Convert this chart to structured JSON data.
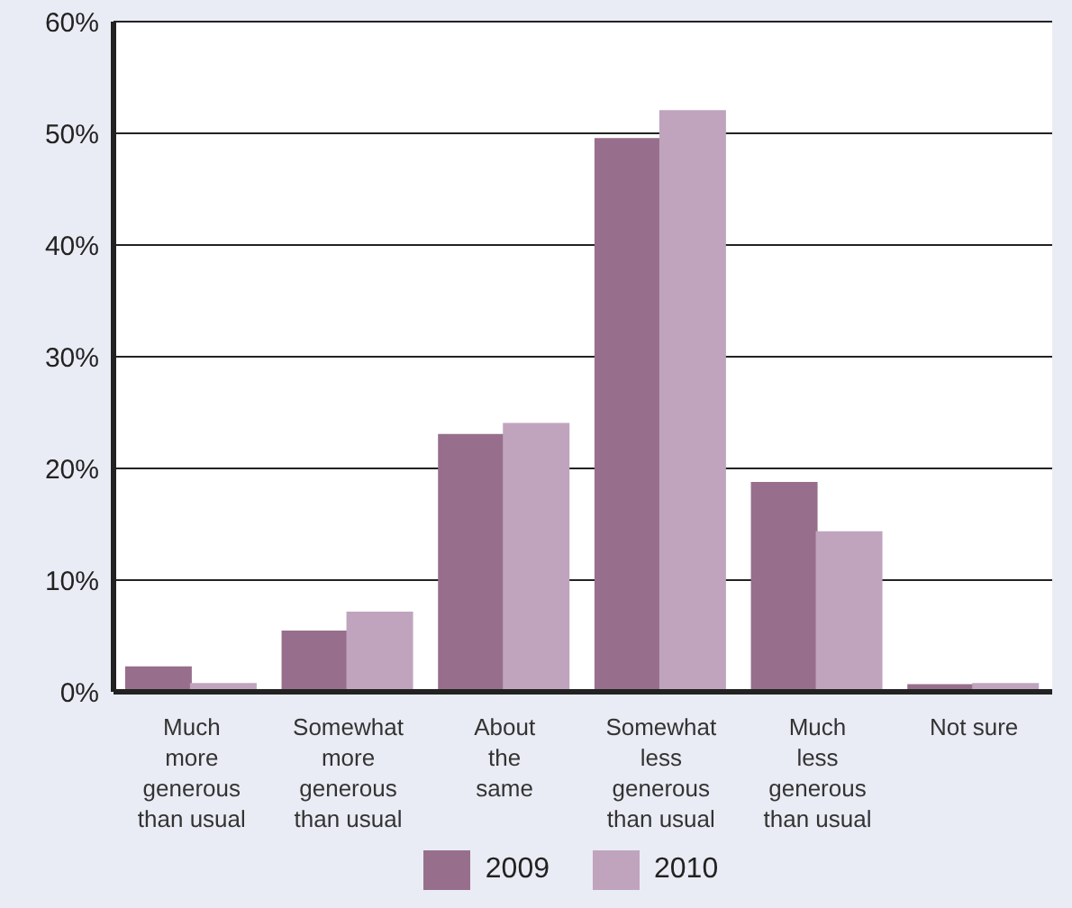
{
  "chart_data": {
    "type": "bar",
    "categories": [
      "Much\nmore\ngenerous\nthan usual",
      "Somewhat\nmore\ngenerous\nthan usual",
      "About\nthe\nsame",
      "Somewhat\nless\ngenerous\nthan usual",
      "Much\nless\ngenerous\nthan usual",
      "Not sure"
    ],
    "series": [
      {
        "name": "2009",
        "color": "#976f8c",
        "values": [
          2.2,
          5.4,
          23.0,
          49.5,
          18.7,
          0.6
        ]
      },
      {
        "name": "2010",
        "color": "#c0a4be",
        "values": [
          0.7,
          7.1,
          24.0,
          52.0,
          14.3,
          0.7
        ]
      }
    ],
    "ylim": [
      0,
      60
    ],
    "yticks": [
      {
        "value": 0,
        "label": "0%"
      },
      {
        "value": 10,
        "label": "10%"
      },
      {
        "value": 20,
        "label": "20%"
      },
      {
        "value": 30,
        "label": "30%"
      },
      {
        "value": 40,
        "label": "40%"
      },
      {
        "value": 50,
        "label": "50%"
      },
      {
        "value": 60,
        "label": "60%"
      }
    ],
    "grid": "y",
    "legend": "bottom"
  }
}
